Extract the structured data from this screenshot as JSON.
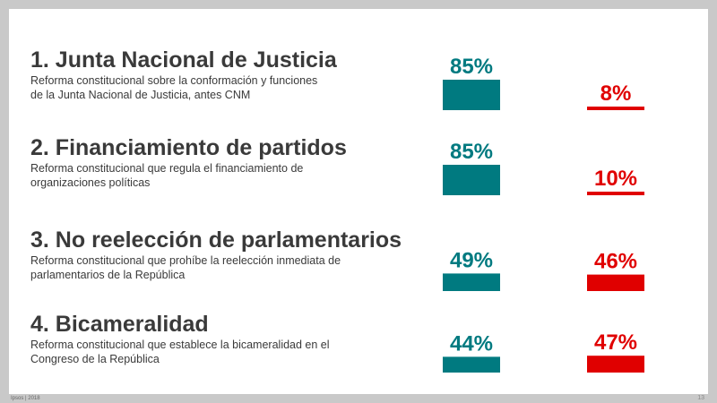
{
  "items": [
    {
      "title": "1. Junta Nacional de Justicia",
      "desc_lines": [
        "Reforma constitucional sobre la conformación y funciones",
        "de la Junta Nacional de Justicia, antes CNM"
      ]
    },
    {
      "title": "2. Financiamiento de partidos",
      "desc_lines": [
        "Reforma constitucional que regula el financiamiento de",
        "organizaciones políticas"
      ]
    },
    {
      "title": "3. No reelección de parlamentarios",
      "desc_lines": [
        "Reforma constitucional que prohíbe la reelección inmediata de",
        "parlamentarios de la República"
      ]
    },
    {
      "title": "4. Bicameralidad",
      "desc_lines": [
        "Reforma constitucional que establece la bicameralidad en el",
        "Congreso de la República"
      ]
    }
  ],
  "chart_data": {
    "type": "bar",
    "categories": [
      "1. Junta Nacional de Justicia",
      "2. Financiamiento de partidos",
      "3. No reelección de parlamentarios",
      "4. Bicameralidad"
    ],
    "series": [
      {
        "values": [
          85,
          85,
          49,
          44
        ],
        "labels": [
          "85%",
          "85%",
          "49%",
          "44%"
        ],
        "color": "#007a80"
      },
      {
        "values": [
          8,
          10,
          46,
          47
        ],
        "labels": [
          "8%",
          "10%",
          "46%",
          "47%"
        ],
        "color": "#e00000"
      }
    ],
    "ylim": [
      0,
      100
    ]
  },
  "footer": {
    "source": "Ipsos | 2018",
    "page": "13"
  }
}
